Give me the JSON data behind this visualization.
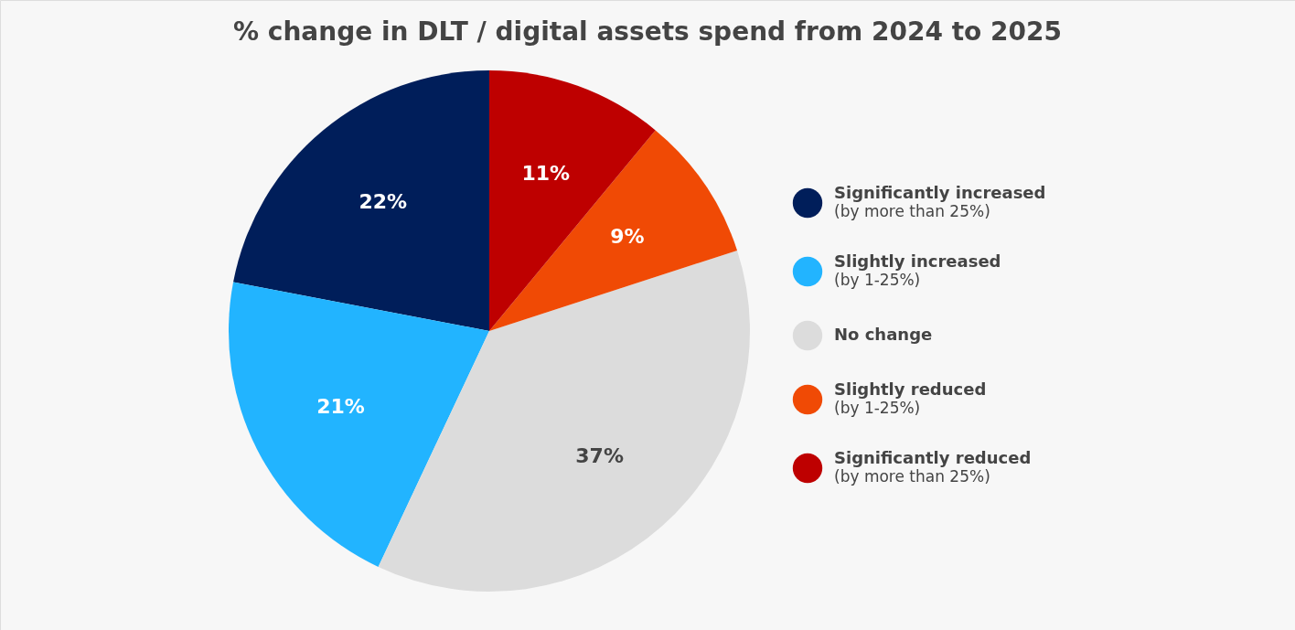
{
  "chart_data": {
    "type": "pie",
    "title": "% change in DLT / digital assets spend from 2024 to 2025",
    "categories": [
      "Significantly increased\n(by more than 25%)",
      "Slightly increased\n(by 1-25%)",
      "No change",
      "Slightly reduced\n(by 1-25%)",
      "Significantly reduced\n(by more than 25%)"
    ],
    "values": [
      22,
      21,
      37,
      9,
      11
    ],
    "colors": [
      "#001e5a",
      "#22b4ff",
      "#dcdcdc",
      "#f04a05",
      "#be0000"
    ],
    "value_labels": [
      "22%",
      "21%",
      "37%",
      "9%",
      "11%"
    ],
    "legend": "right"
  }
}
